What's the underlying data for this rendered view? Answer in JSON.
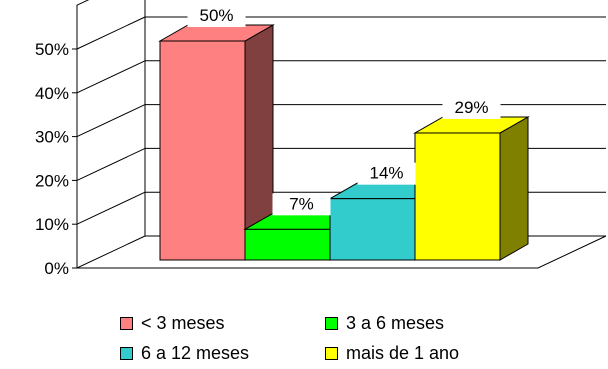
{
  "chart_data": {
    "type": "bar",
    "three_d": true,
    "categories": [
      "< 3 meses",
      "3 a 6 meses",
      "6 a 12 meses",
      "mais de 1 ano"
    ],
    "values": [
      50,
      7,
      14,
      29
    ],
    "data_labels": [
      "50%",
      "7%",
      "14%",
      "29%"
    ],
    "colors": [
      "#FF8080",
      "#00FF00",
      "#33CCCC",
      "#FFFF00"
    ],
    "side_colors": [
      "#804040",
      "#008000",
      "#1A6666",
      "#808000"
    ],
    "yticks": [
      "0%",
      "10%",
      "20%",
      "30%",
      "40%",
      "50%"
    ],
    "ylim": [
      0,
      50
    ],
    "grid": true,
    "legend_position": "bottom",
    "title": "",
    "xlabel": "",
    "ylabel": ""
  }
}
